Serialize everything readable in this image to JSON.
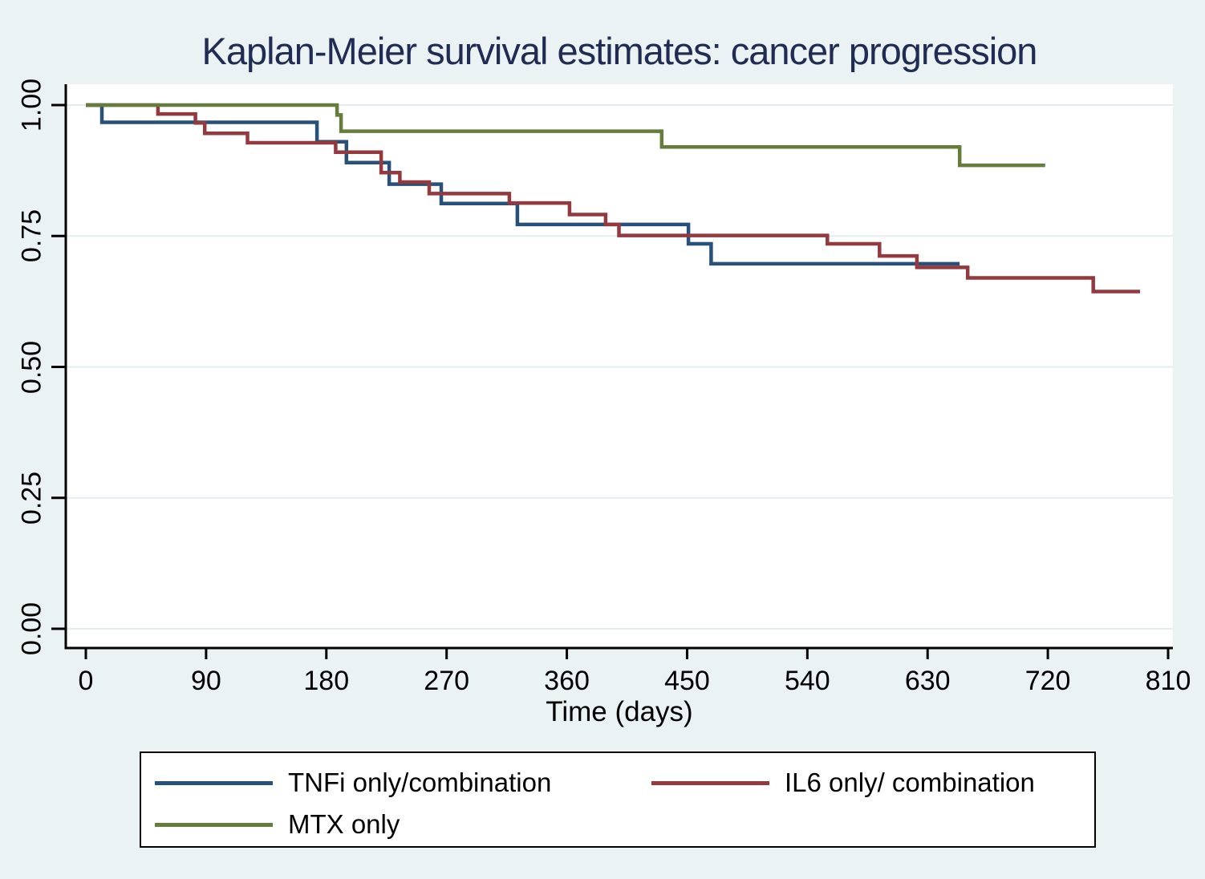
{
  "title": "Kaplan-Meier survival estimates: cancer progression",
  "axes": {
    "x_label": "Time (days)",
    "x_ticks": [
      0,
      90,
      180,
      270,
      360,
      450,
      540,
      630,
      720,
      810
    ],
    "y_ticks": [
      "1.00",
      "0.75",
      "0.50",
      "0.25",
      "0.00"
    ],
    "y_tick_values": [
      1.0,
      0.75,
      0.5,
      0.25,
      0.0
    ]
  },
  "chart_data": {
    "type": "line",
    "subtype": "kaplan-meier-step",
    "title": "Kaplan-Meier survival estimates: cancer progression",
    "xlabel": "Time (days)",
    "ylabel": "",
    "xlim": [
      0,
      810
    ],
    "ylim": [
      0.0,
      1.0
    ],
    "x_ticks": [
      0,
      90,
      180,
      270,
      360,
      450,
      540,
      630,
      720,
      810
    ],
    "y_ticks": [
      1.0,
      0.75,
      0.5,
      0.25,
      0.0
    ],
    "grid": "horizontal",
    "legend_position": "bottom",
    "series": [
      {
        "name": "TNFi only/combination",
        "color": "#27517b",
        "end_time": 654,
        "steps": [
          [
            0,
            1.0
          ],
          [
            12,
            0.967
          ],
          [
            173,
            0.93
          ],
          [
            195,
            0.89
          ],
          [
            227,
            0.849
          ],
          [
            266,
            0.812
          ],
          [
            323,
            0.772
          ],
          [
            451,
            0.735
          ],
          [
            468,
            0.697
          ]
        ]
      },
      {
        "name": "IL6 only/ combination",
        "color": "#94393e",
        "end_time": 789,
        "steps": [
          [
            0,
            1.0
          ],
          [
            54,
            0.983
          ],
          [
            82,
            0.966
          ],
          [
            89,
            0.946
          ],
          [
            121,
            0.928
          ],
          [
            187,
            0.91
          ],
          [
            221,
            0.871
          ],
          [
            235,
            0.853
          ],
          [
            257,
            0.831
          ],
          [
            317,
            0.813
          ],
          [
            362,
            0.791
          ],
          [
            389,
            0.772
          ],
          [
            399,
            0.751
          ],
          [
            555,
            0.735
          ],
          [
            594,
            0.712
          ],
          [
            622,
            0.69
          ],
          [
            660,
            0.67
          ],
          [
            754,
            0.644
          ]
        ]
      },
      {
        "name": "MTX only",
        "color": "#657c3b",
        "end_time": 718,
        "steps": [
          [
            0,
            1.0
          ],
          [
            188,
            0.981
          ],
          [
            191,
            0.95
          ],
          [
            431,
            0.92
          ],
          [
            654,
            0.885
          ]
        ]
      }
    ]
  },
  "legend": {
    "items": [
      {
        "label": "TNFi only/combination",
        "color": "#27517b"
      },
      {
        "label": "IL6 only/ combination",
        "color": "#94393e"
      },
      {
        "label": "MTX only",
        "color": "#657c3b"
      }
    ]
  },
  "colors": {
    "background": "#eaf2f3",
    "plot_background": "#ffffff",
    "gridline": "#e2edf0",
    "axis": "#000000",
    "title": "#212c54"
  }
}
